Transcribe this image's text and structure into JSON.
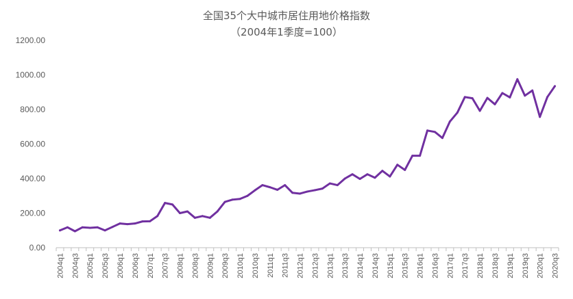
{
  "chart_data": {
    "type": "line",
    "title": "全国35个大中城市居住用地价格指数",
    "subtitle": "（2004年1季度=100）",
    "xlabel": "",
    "ylabel": "",
    "ylim": [
      0,
      1200
    ],
    "yticks": [
      "0.00",
      "200.00",
      "400.00",
      "600.00",
      "800.00",
      "1000.00",
      "1200.00"
    ],
    "legend": "none",
    "grid": false,
    "series_color": "#7030A0",
    "categories": [
      "2004q1",
      "2004q2",
      "2004q3",
      "2004q4",
      "2005q1",
      "2005q2",
      "2005q3",
      "2005q4",
      "2006q1",
      "2006q2",
      "2006q3",
      "2006q4",
      "2007q1",
      "2007q2",
      "2007q3",
      "2007q4",
      "2008q1",
      "2008q2",
      "2008q3",
      "2008q4",
      "2009q1",
      "2009q2",
      "2009q3",
      "2009q4",
      "2010q1",
      "2010q2",
      "2010q3",
      "2010q4",
      "2011q1",
      "2011q2",
      "2011q3",
      "2011q4",
      "2012q1",
      "2012q2",
      "2012q3",
      "2012q4",
      "2013q1",
      "2013q2",
      "2013q3",
      "2013q4",
      "2014q1",
      "2014q2",
      "2014q3",
      "2014q4",
      "2015q1",
      "2015q2",
      "2015q3",
      "2015q4",
      "2016q1",
      "2016q2",
      "2016q3",
      "2016q4",
      "2017q1",
      "2017q2",
      "2017q3",
      "2017q4",
      "2018q1",
      "2018q2",
      "2018q3",
      "2018q4",
      "2019q1",
      "2019q2",
      "2019q3",
      "2019q4",
      "2020q1",
      "2020q2",
      "2020q3"
    ],
    "xtick_labels": [
      "2004q1",
      "2004q3",
      "2005q1",
      "2005q3",
      "2006q1",
      "2006q3",
      "2007q1",
      "2007q3",
      "2008q1",
      "2008q3",
      "2009q1",
      "2009q3",
      "2010q1",
      "2010q3",
      "2011q1",
      "2011q3",
      "2012q1",
      "2012q3",
      "2013q1",
      "2013q3",
      "2014q1",
      "2014q3",
      "2015q1",
      "2015q3",
      "2016q1",
      "2016q3",
      "2017q1",
      "2017q3",
      "2018q1",
      "2018q3",
      "2019q1",
      "2019q3",
      "2020q1",
      "2020q3"
    ],
    "series": [
      {
        "values": [
          100,
          118,
          95,
          118,
          115,
          118,
          100,
          120,
          140,
          136,
          140,
          152,
          153,
          183,
          259,
          250,
          200,
          210,
          173,
          183,
          173,
          210,
          265,
          278,
          282,
          300,
          332,
          362,
          350,
          335,
          362,
          318,
          313,
          325,
          333,
          342,
          372,
          362,
          400,
          425,
          398,
          425,
          405,
          445,
          412,
          480,
          450,
          532,
          532,
          678,
          670,
          635,
          730,
          782,
          872,
          865,
          792,
          867,
          830,
          895,
          870,
          975,
          880,
          910,
          757,
          872,
          935
        ]
      }
    ]
  }
}
